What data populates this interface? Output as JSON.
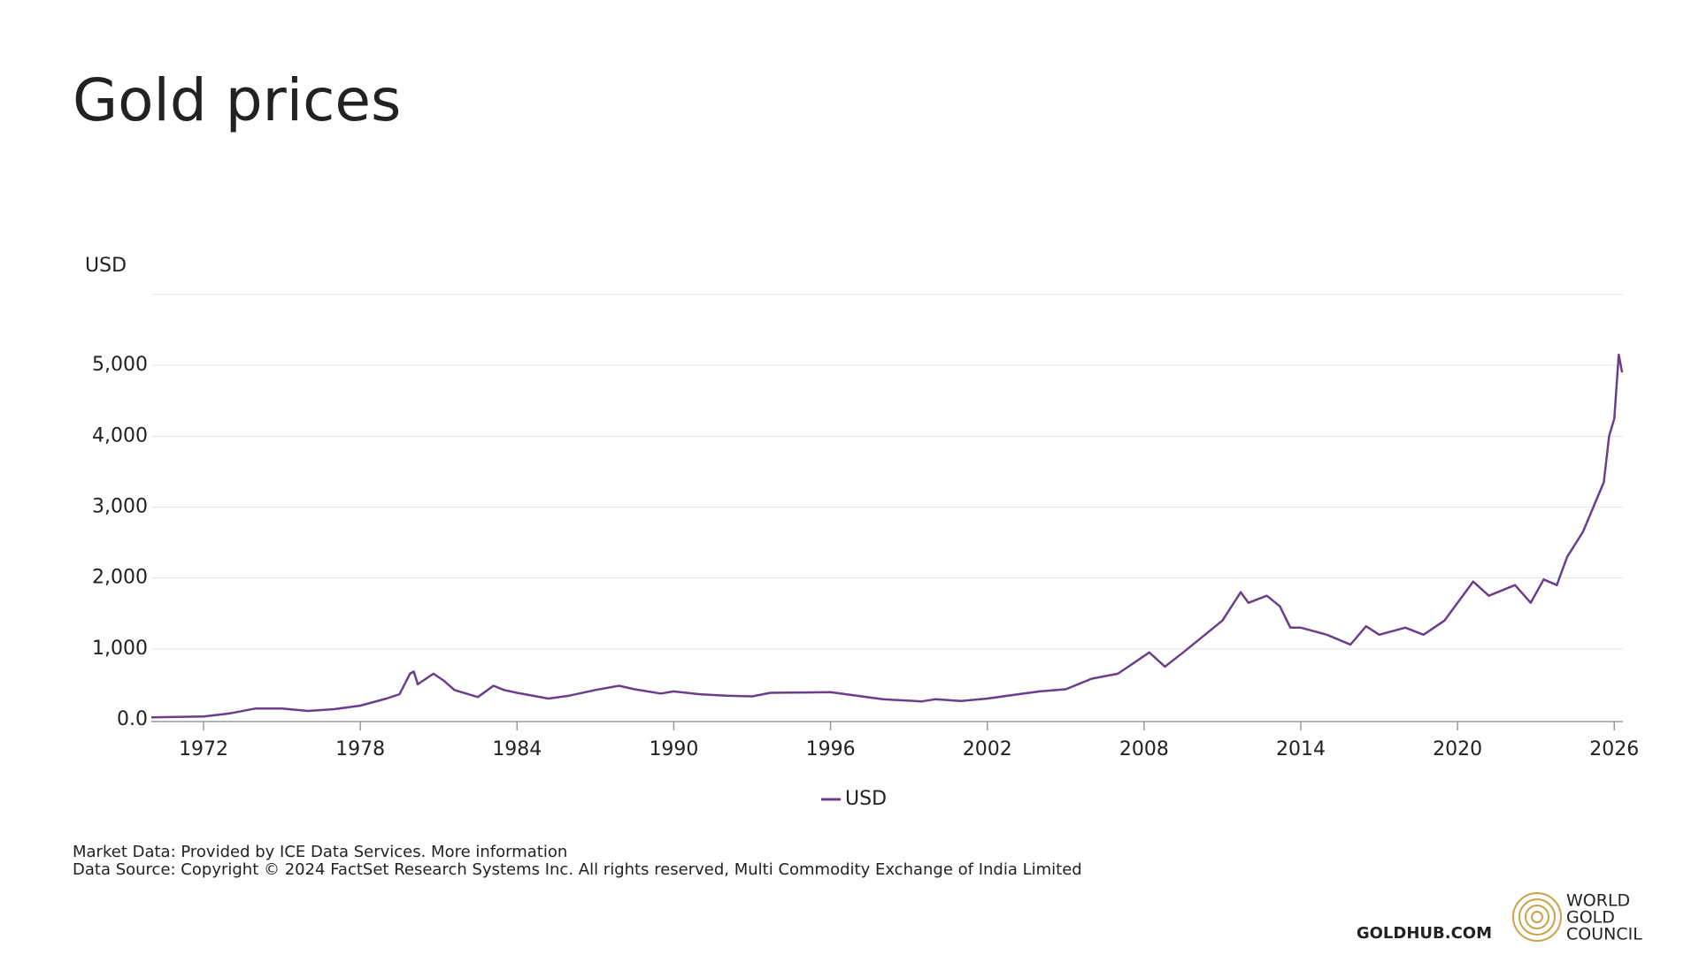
{
  "chart_data": {
    "type": "line",
    "title": "Gold prices",
    "y_label": "USD",
    "x": [
      1970,
      1971,
      1972,
      1973,
      1974,
      1975,
      1976,
      1977,
      1978,
      1979,
      1979.5,
      1979.9,
      1980.05,
      1980.2,
      1980.8,
      1981.2,
      1981.6,
      1982.5,
      1983.1,
      1983.5,
      1984,
      1985.2,
      1986,
      1987,
      1987.9,
      1988.5,
      1989.5,
      1990,
      1991,
      1992,
      1993,
      1993.7,
      1995,
      1996,
      1997,
      1998,
      1999.5,
      2000,
      2001,
      2002,
      2003,
      2004,
      2005,
      2006,
      2007,
      2008.2,
      2008.8,
      2009.5,
      2010,
      2011,
      2011.7,
      2012,
      2012.7,
      2013.2,
      2013.6,
      2014,
      2015,
      2015.9,
      2016.5,
      2017,
      2018,
      2018.7,
      2019.5,
      2020.6,
      2021.2,
      2022.2,
      2022.8,
      2023.3,
      2023.8,
      2024.2,
      2024.8,
      2025.2,
      2025.6,
      2025.8,
      2026,
      2026.17,
      2026.3
    ],
    "series": [
      {
        "name": "USD",
        "color": "#6b3d8a",
        "values": [
          35,
          40,
          48,
          90,
          160,
          160,
          125,
          150,
          200,
          300,
          360,
          650,
          680,
          500,
          650,
          550,
          420,
          320,
          480,
          420,
          380,
          300,
          340,
          420,
          480,
          430,
          370,
          400,
          360,
          340,
          330,
          380,
          385,
          390,
          340,
          290,
          260,
          290,
          265,
          300,
          350,
          400,
          430,
          580,
          650,
          950,
          750,
          950,
          1100,
          1400,
          1800,
          1650,
          1750,
          1600,
          1300,
          1300,
          1200,
          1060,
          1320,
          1200,
          1300,
          1200,
          1400,
          1950,
          1750,
          1900,
          1650,
          1980,
          1900,
          2300,
          2650,
          3000,
          3350,
          4000,
          4250,
          5150,
          4900
        ]
      }
    ],
    "xlim": [
      1970,
      2026.33
    ],
    "xticks": [
      1972,
      1978,
      1984,
      1990,
      1996,
      2002,
      2008,
      2014,
      2020,
      2026
    ],
    "ylim": [
      0,
      6000
    ],
    "yticks": [
      {
        "value": 0,
        "label": "0.0"
      },
      {
        "value": 1000,
        "label": "1,000"
      },
      {
        "value": 2000,
        "label": "2,000"
      },
      {
        "value": 3000,
        "label": "3,000"
      },
      {
        "value": 4000,
        "label": "4,000"
      },
      {
        "value": 5000,
        "label": "5,000"
      }
    ],
    "grid": true,
    "legend": "bottom"
  },
  "footer": {
    "notes": [
      "Market Data: Provided by ICE Data Services. More information",
      "Data Source: Copyright © 2024 FactSet Research Systems Inc. All rights reserved, Multi Commodity Exchange of India Limited"
    ],
    "site": "GOLDHUB.COM",
    "logo": [
      "WORLD",
      "GOLD",
      "COUNCIL"
    ]
  }
}
